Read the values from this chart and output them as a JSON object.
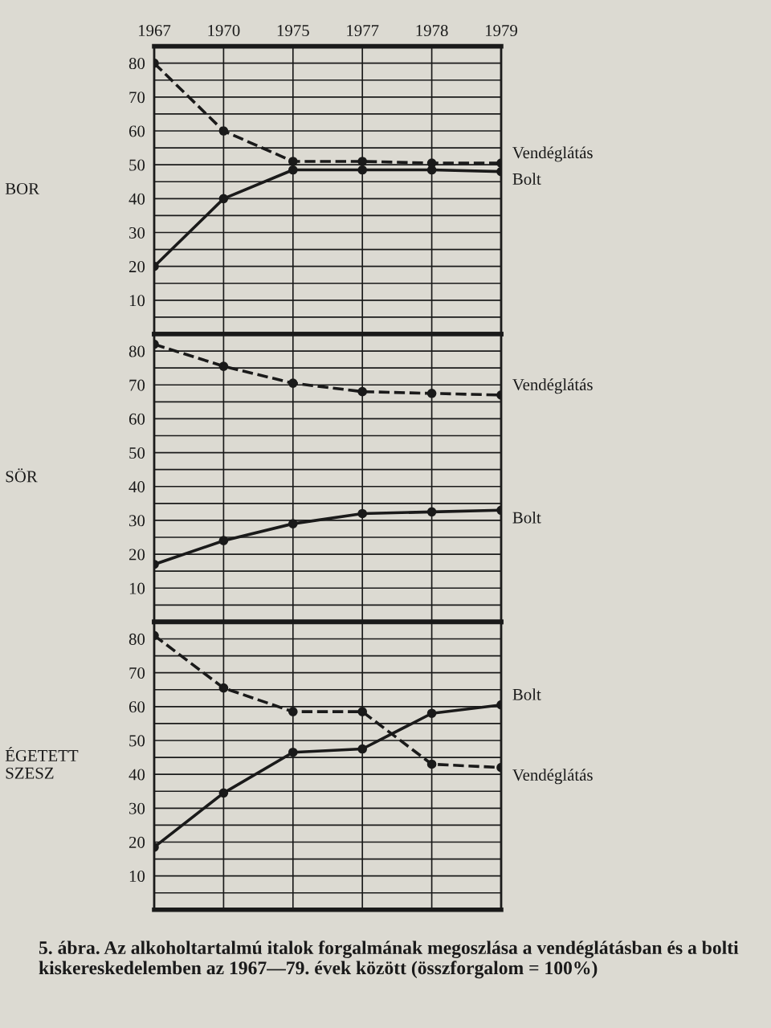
{
  "chart_data": [
    {
      "type": "line",
      "ylabel": "BOR",
      "categories": [
        "1967",
        "1970",
        "1975",
        "1977",
        "1978",
        "1979"
      ],
      "series": [
        {
          "name": "Vendéglátás",
          "color": "#1a1a1a",
          "line_style": "dashed",
          "values": [
            80,
            60,
            51,
            51,
            50.5,
            50.5
          ]
        },
        {
          "name": "Bolt",
          "color": "#1a1a1a",
          "line_style": "solid",
          "values": [
            20,
            40,
            48.5,
            48.5,
            48.5,
            48
          ]
        }
      ],
      "ylim": [
        0,
        85
      ],
      "yticks": [
        {
          "value": 5,
          "label": null
        },
        10,
        {
          "value": 15,
          "label": null
        },
        20,
        {
          "value": 25,
          "label": null
        },
        30,
        {
          "value": 35,
          "label": null
        },
        40,
        {
          "value": 45,
          "label": null
        },
        50,
        {
          "value": 55,
          "label": null
        },
        60,
        {
          "value": 65,
          "label": null
        },
        70,
        {
          "value": 75,
          "label": null
        },
        80
      ],
      "grid": true,
      "marker": "circle"
    },
    {
      "type": "line",
      "ylabel": "SÖR",
      "categories": [
        "1967",
        "1970",
        "1975",
        "1977",
        "1978",
        "1979"
      ],
      "series": [
        {
          "name": "Vendéglátás",
          "color": "#1a1a1a",
          "line_style": "dashed",
          "values": [
            82,
            75.5,
            70.5,
            68,
            67.5,
            67
          ]
        },
        {
          "name": "Bolt",
          "color": "#1a1a1a",
          "line_style": "solid",
          "values": [
            17,
            24,
            29,
            32,
            32.5,
            33
          ]
        }
      ],
      "ylim": [
        0,
        85
      ],
      "yticks": [
        {
          "value": 5,
          "label": null
        },
        10,
        {
          "value": 15,
          "label": null
        },
        20,
        {
          "value": 25,
          "label": null
        },
        30,
        {
          "value": 35,
          "label": null
        },
        40,
        {
          "value": 45,
          "label": null
        },
        50,
        {
          "value": 55,
          "label": null
        },
        60,
        {
          "value": 65,
          "label": null
        },
        70,
        {
          "value": 75,
          "label": null
        },
        80
      ],
      "grid": true,
      "marker": "circle",
      "tick_labels": "y"
    },
    {
      "type": "line",
      "ylabel": "ÉGETETT SZESZ",
      "categories": [
        "1967",
        "1970",
        "1975",
        "1977",
        "1978",
        "1979"
      ],
      "series": [
        {
          "name": "Vendéglátás",
          "color": "#1a1a1a",
          "line_style": "dashed",
          "values": [
            81,
            65.5,
            58.5,
            58.5,
            43,
            42
          ]
        },
        {
          "name": "Bolt",
          "color": "#1a1a1a",
          "line_style": "solid",
          "values": [
            18.5,
            34.5,
            46.5,
            47.5,
            58,
            60.5
          ]
        }
      ],
      "ylim": [
        0,
        85
      ],
      "yticks": [
        {
          "value": 5,
          "label": null
        },
        10,
        {
          "value": 15,
          "label": null
        },
        20,
        {
          "value": 25,
          "label": null
        },
        30,
        {
          "value": 35,
          "label": null
        },
        40,
        {
          "value": 45,
          "label": null
        },
        50,
        {
          "value": 55,
          "label": null
        },
        60,
        {
          "value": 65,
          "label": null
        },
        70,
        {
          "value": 75,
          "label": null
        },
        80
      ],
      "grid": true,
      "marker": "circle",
      "tick_labels": "y",
      "annotations": [
        "5. ábra. Az alkoholtartalmú italok forgalmának megoszlása a vendéglátásban és a bolti kiskereskedelemben az 1967—79. évek között (összforgalom = 100%)"
      ]
    }
  ]
}
